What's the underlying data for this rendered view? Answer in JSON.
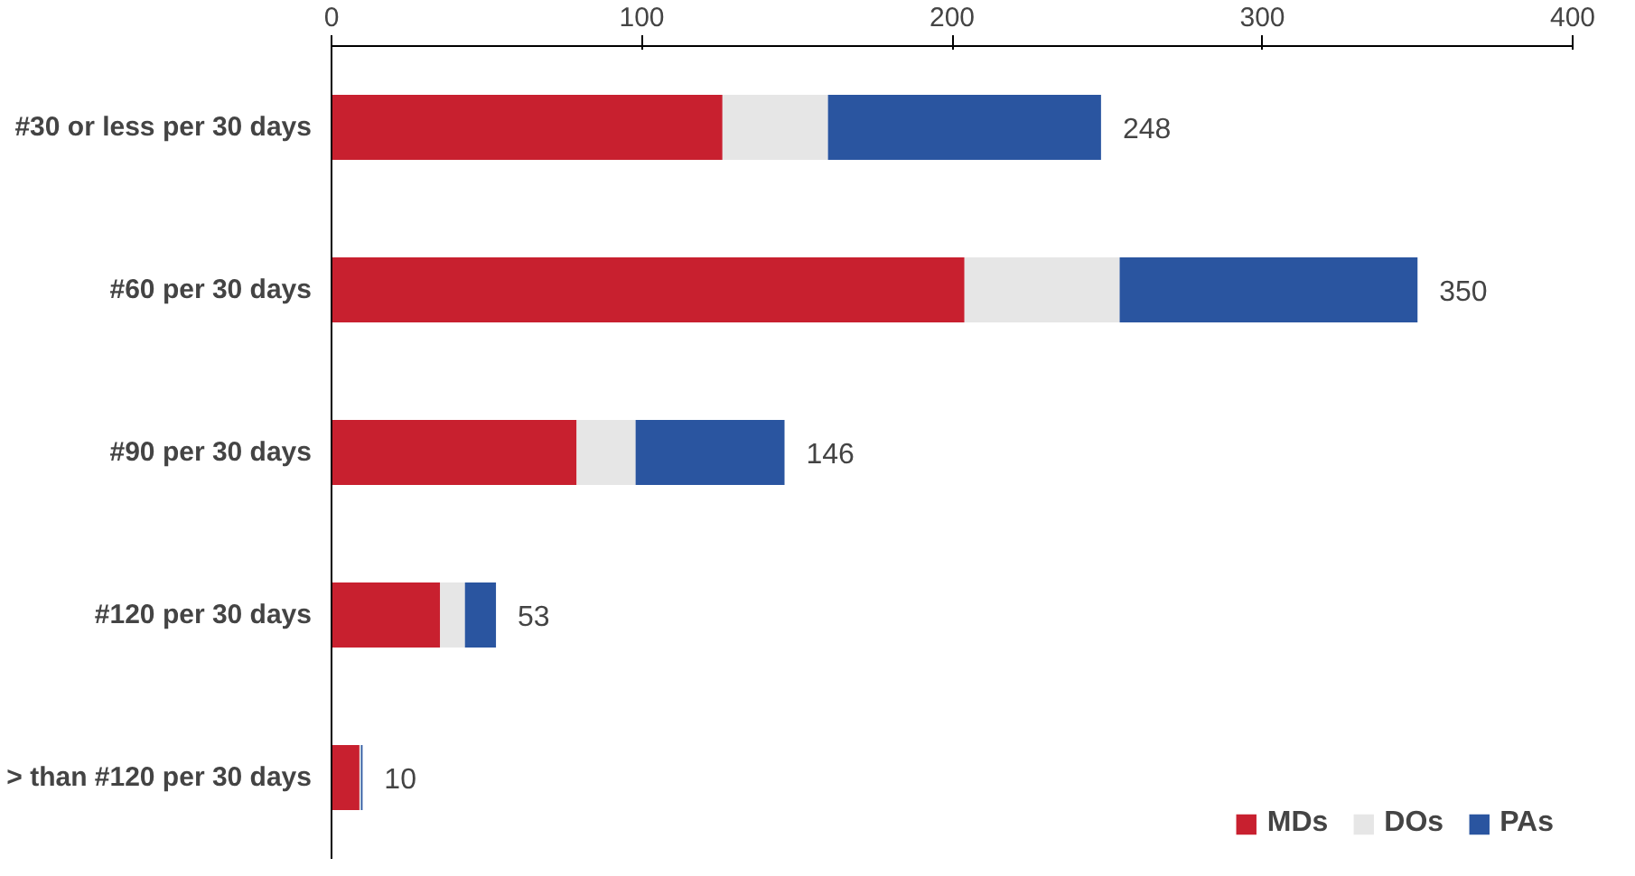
{
  "chart_data": {
    "type": "bar",
    "orientation": "horizontal",
    "stacked": true,
    "categories": [
      "#30 or less per 30 days",
      "#60 per 30 days",
      "#90 per 30 days",
      "#120 per 30 days",
      "> than #120 per 30 days"
    ],
    "series": [
      {
        "name": "MDs",
        "color": "#c8202f",
        "values": [
          126,
          204,
          79,
          35,
          9
        ]
      },
      {
        "name": "DOs",
        "color": "#e6e6e6",
        "values": [
          34,
          50,
          19,
          8,
          0.5
        ]
      },
      {
        "name": "PAs",
        "color": "#2a55a0",
        "values": [
          88,
          96,
          48,
          10,
          0.5
        ]
      }
    ],
    "totals": [
      "248",
      "350",
      "146",
      "53",
      "10"
    ],
    "xlim": [
      0,
      400
    ],
    "xticks": [
      0,
      100,
      200,
      300,
      400
    ],
    "legend": "bottom right"
  }
}
